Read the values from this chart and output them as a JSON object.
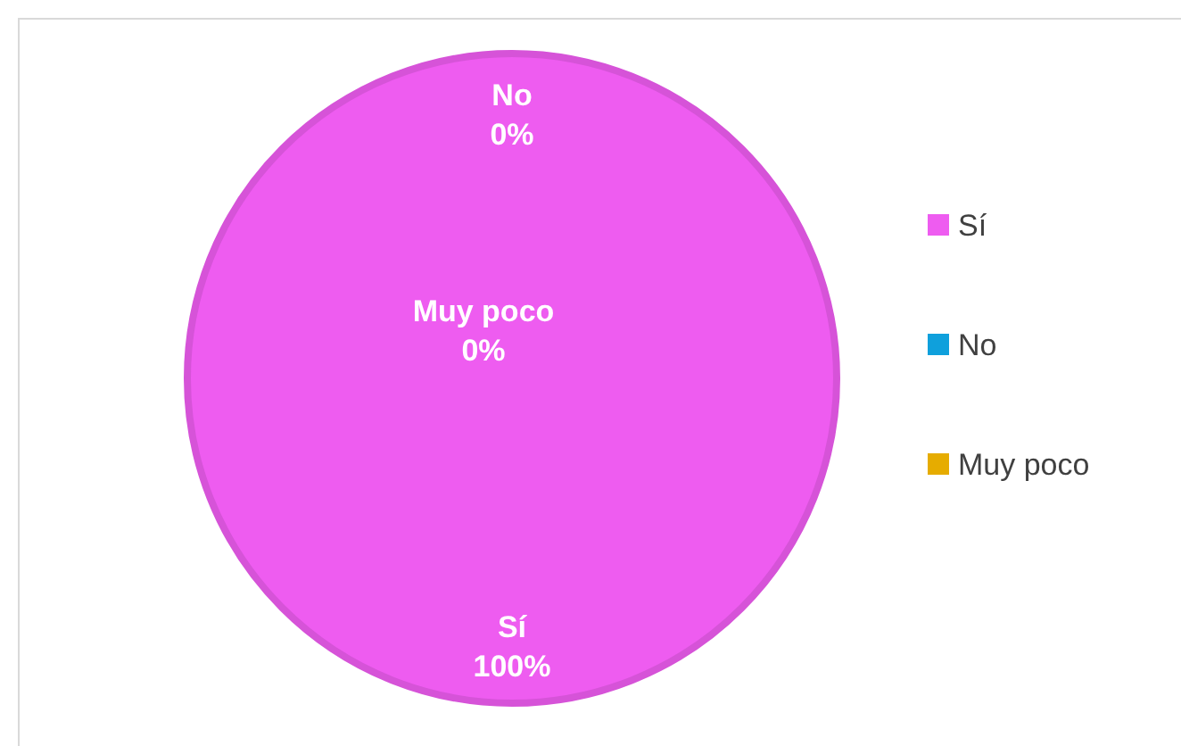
{
  "chart_data": {
    "type": "pie",
    "categories": [
      "Sí",
      "No",
      "Muy poco"
    ],
    "values": [
      100,
      0,
      0
    ],
    "colors": [
      "#ee5cf0",
      "#0fa0dc",
      "#e6ac00"
    ],
    "value_labels": [
      "100%",
      "0%",
      "0%"
    ],
    "legend": "right"
  }
}
